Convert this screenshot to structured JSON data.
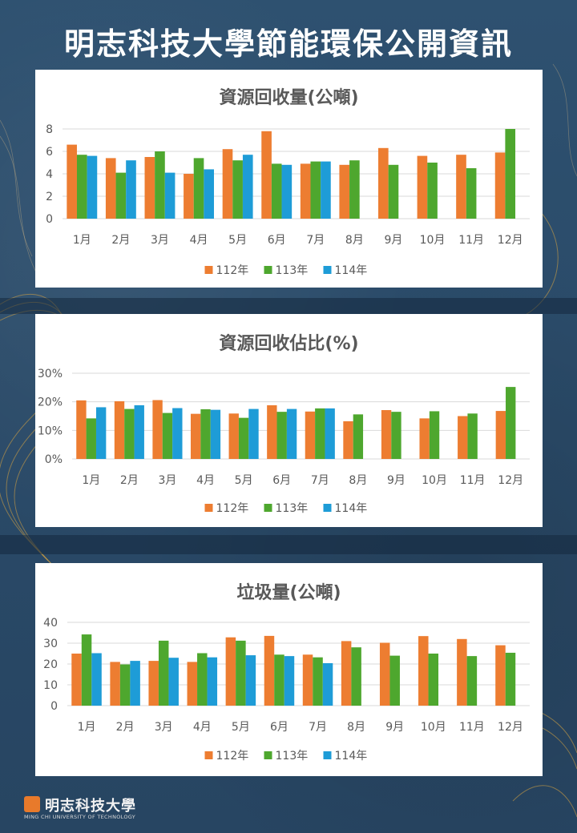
{
  "page": {
    "title": "明志科技大學節能環保公開資訊",
    "logo_text": "明志科技大學",
    "logo_sub": "MING CHI UNIVERSITY OF TECHNOLOGY"
  },
  "colors": {
    "s112": "#ED7D31",
    "s113": "#4EA72E",
    "s114": "#1E9CD7"
  },
  "chart_data": [
    {
      "type": "bar",
      "title": "資源回收量(公噸)",
      "categories": [
        "1月",
        "2月",
        "3月",
        "4月",
        "5月",
        "6月",
        "7月",
        "8月",
        "9月",
        "10月",
        "11月",
        "12月"
      ],
      "ylim": [
        0,
        8
      ],
      "yticks": [
        "0",
        "2",
        "4",
        "6",
        "8"
      ],
      "ytick_values": [
        0,
        2,
        4,
        6,
        8
      ],
      "series": [
        {
          "name": "112年",
          "values": [
            6.6,
            5.4,
            5.5,
            4.0,
            6.2,
            7.8,
            4.9,
            4.8,
            6.3,
            5.6,
            5.7,
            5.9
          ]
        },
        {
          "name": "113年",
          "values": [
            5.7,
            4.1,
            6.0,
            5.4,
            5.2,
            4.9,
            5.1,
            5.2,
            4.8,
            5.0,
            4.5,
            8.0
          ]
        },
        {
          "name": "114年",
          "values": [
            5.6,
            5.2,
            4.1,
            4.4,
            5.7,
            4.8,
            5.1,
            null,
            null,
            null,
            null,
            null
          ]
        }
      ],
      "grid": true,
      "legend": "bottom"
    },
    {
      "type": "bar",
      "title": "資源回收佔比(%)",
      "categories": [
        "1月",
        "2月",
        "3月",
        "4月",
        "5月",
        "6月",
        "7月",
        "8月",
        "9月",
        "10月",
        "11月",
        "12月"
      ],
      "ylim": [
        0,
        30
      ],
      "yticks": [
        "0%",
        "10%",
        "20%",
        "30%"
      ],
      "ytick_values": [
        0,
        10,
        20,
        30
      ],
      "series": [
        {
          "name": "112年",
          "values": [
            20.5,
            20.2,
            20.6,
            15.8,
            15.9,
            18.8,
            16.6,
            13.2,
            17.1,
            14.2,
            15.0,
            16.8
          ]
        },
        {
          "name": "113年",
          "values": [
            14.2,
            17.5,
            16.1,
            17.4,
            14.4,
            16.5,
            17.7,
            15.6,
            16.5,
            16.7,
            15.9,
            25.2
          ]
        },
        {
          "name": "114年",
          "values": [
            18.1,
            18.8,
            17.8,
            17.2,
            17.5,
            17.5,
            17.7,
            null,
            null,
            null,
            null,
            null
          ]
        }
      ],
      "grid": true,
      "legend": "bottom"
    },
    {
      "type": "bar",
      "title": "垃圾量(公噸)",
      "categories": [
        "1月",
        "2月",
        "3月",
        "4月",
        "5月",
        "6月",
        "7月",
        "8月",
        "9月",
        "10月",
        "11月",
        "12月"
      ],
      "ylim": [
        0,
        40
      ],
      "yticks": [
        "0",
        "10",
        "20",
        "30",
        "40"
      ],
      "ytick_values": [
        0,
        10,
        20,
        30,
        40
      ],
      "series": [
        {
          "name": "112年",
          "values": [
            25.0,
            21.0,
            21.5,
            21.0,
            32.8,
            33.5,
            24.5,
            31.0,
            30.2,
            33.4,
            32.0,
            29.0
          ]
        },
        {
          "name": "113年",
          "values": [
            34.2,
            19.8,
            31.2,
            25.2,
            31.2,
            24.5,
            23.2,
            28.0,
            24.0,
            25.0,
            23.8,
            25.4
          ]
        },
        {
          "name": "114年",
          "values": [
            25.2,
            21.5,
            23.0,
            23.2,
            24.2,
            23.8,
            20.4,
            null,
            null,
            null,
            null,
            null
          ]
        }
      ],
      "grid": true,
      "legend": "bottom"
    }
  ]
}
